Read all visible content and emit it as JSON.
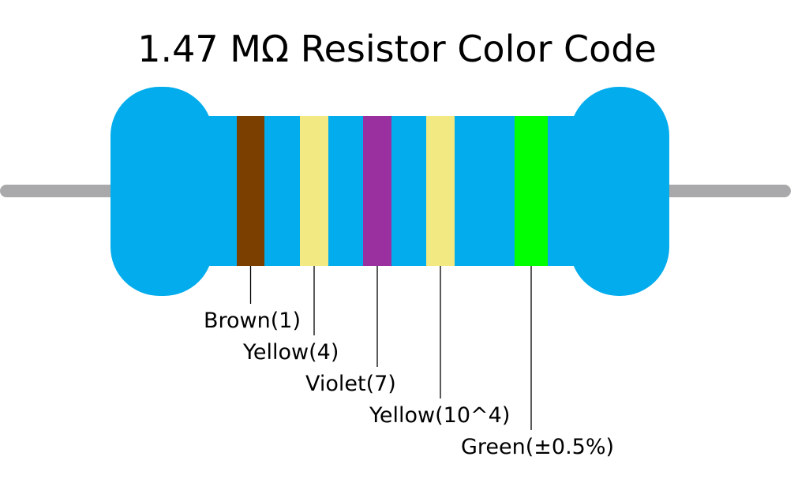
{
  "title": "1.47 MΩ Resistor Color Code",
  "body_color": "#03acec",
  "lead_color": "#a9a9ab",
  "bands": [
    {
      "label": "Brown(1)",
      "color": "#7b3f00"
    },
    {
      "label": "Yellow(4)",
      "color": "#f2e982"
    },
    {
      "label": "Violet(7)",
      "color": "#9a2fa0"
    },
    {
      "label": "Yellow(10^4)",
      "color": "#f2e982"
    },
    {
      "label": "Green(±0.5%)",
      "color": "#00ff00"
    }
  ]
}
